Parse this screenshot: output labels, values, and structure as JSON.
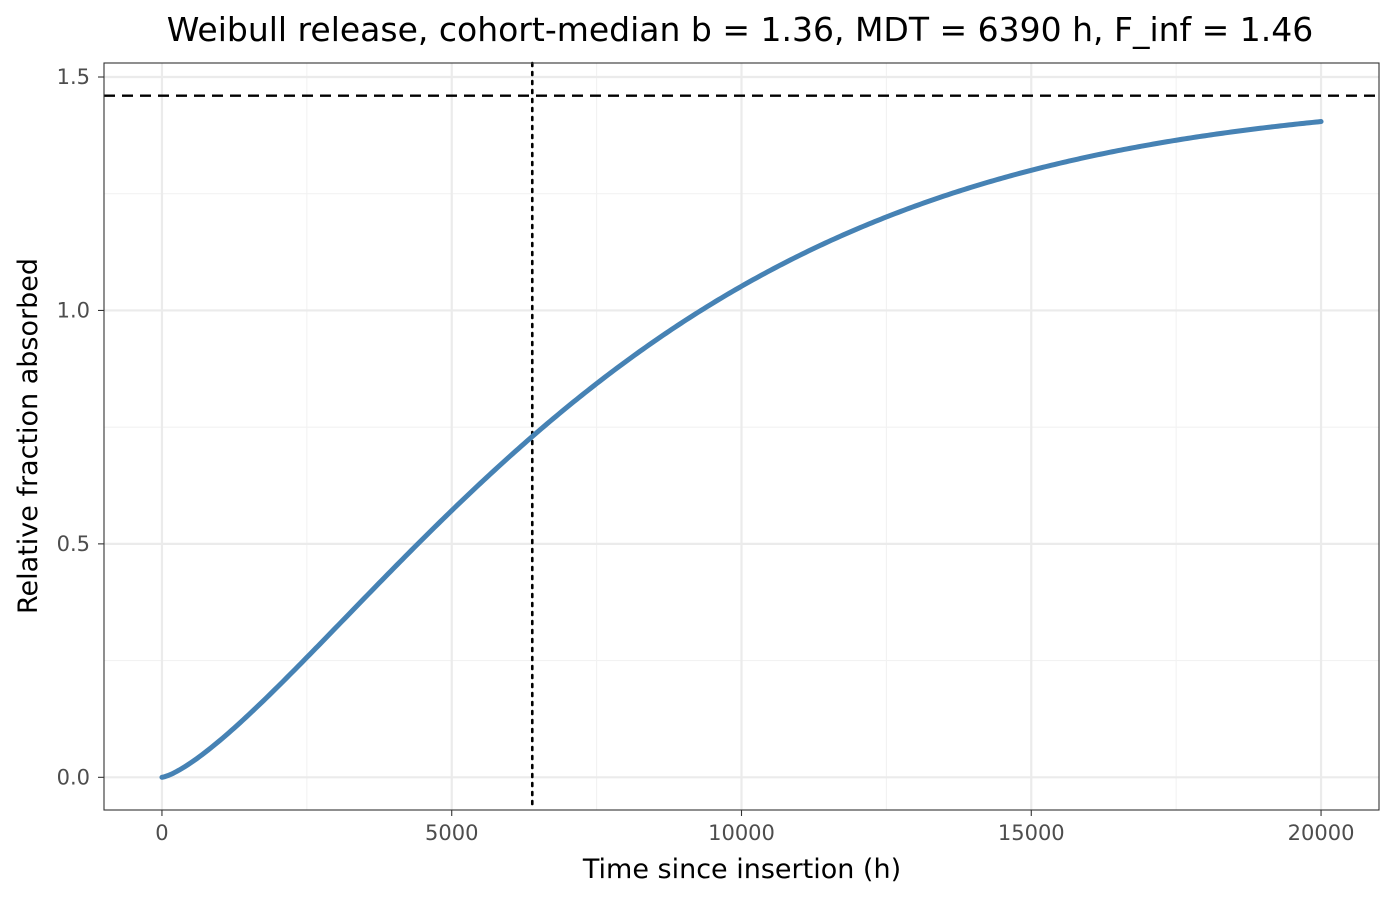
{
  "chart_data": {
    "type": "line",
    "title": "Weibull release, cohort-median b = 1.36, MDT = 6390 h, F_inf = 1.46",
    "xlabel": "Time since insertion (h)",
    "ylabel": "Relative fraction absorbed",
    "xlim": [
      -1000,
      21000
    ],
    "ylim": [
      -0.07,
      1.53
    ],
    "x_ticks": [
      0,
      5000,
      10000,
      15000,
      20000
    ],
    "x_tick_labels": [
      "0",
      "5000",
      "10000",
      "15000",
      "20000"
    ],
    "y_ticks": [
      0.0,
      0.5,
      1.0,
      1.5
    ],
    "y_tick_labels": [
      "0.0",
      "0.5",
      "1.0",
      "1.5"
    ],
    "grid": true,
    "legend": "none",
    "model": {
      "b": 1.36,
      "MDT": 6390,
      "F_inf": 1.46,
      "t_max": 20000
    },
    "series": [
      {
        "color": "#4682b4",
        "x": [
          0,
          1000,
          2000,
          3000,
          4000,
          5000,
          6000,
          6390,
          7000,
          8000,
          9000,
          10000,
          11000,
          12000,
          13000,
          14000,
          15000,
          16000,
          17000,
          18000,
          19000,
          20000
        ],
        "y": [
          0.0,
          0.117,
          0.269,
          0.423,
          0.57,
          0.703,
          0.821,
          0.862,
          0.924,
          1.01,
          1.083,
          1.143,
          1.191,
          1.23,
          1.261,
          1.285,
          1.305,
          1.32,
          1.331,
          1.34,
          1.347,
          1.352
        ]
      }
    ],
    "reference_lines": [
      {
        "orientation": "horizontal",
        "value": 1.46,
        "style": "dashed",
        "color": "#000000"
      },
      {
        "orientation": "vertical",
        "value": 6390,
        "style": "dotted",
        "color": "#000000"
      }
    ]
  }
}
